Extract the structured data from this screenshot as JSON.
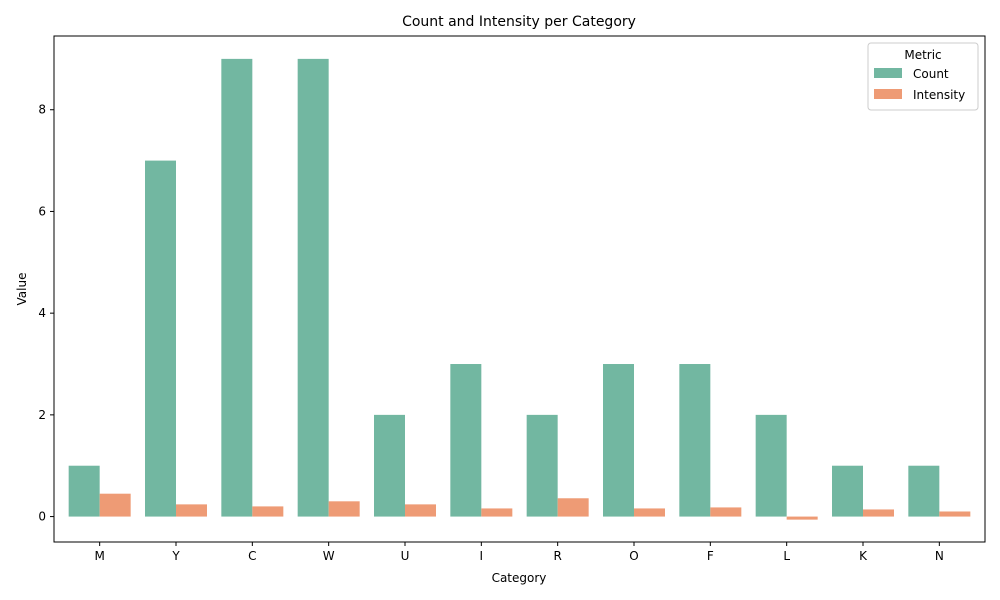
{
  "chart_data": {
    "type": "bar",
    "title": "Count and Intensity per Category",
    "xlabel": "Category",
    "ylabel": "Value",
    "categories": [
      "M",
      "Y",
      "C",
      "W",
      "U",
      "I",
      "R",
      "O",
      "F",
      "L",
      "K",
      "N"
    ],
    "series": [
      {
        "name": "Count",
        "color": "#72b7a1",
        "values": [
          1,
          7,
          9,
          9,
          2,
          3,
          2,
          3,
          3,
          2,
          1,
          1
        ]
      },
      {
        "name": "Intensity",
        "color": "#ee9b75",
        "values": [
          0.45,
          0.24,
          0.2,
          0.3,
          0.24,
          0.16,
          0.36,
          0.16,
          0.18,
          -0.06,
          0.14,
          0.1
        ]
      }
    ],
    "ylim": [
      -0.5,
      9.45
    ],
    "yticks": [
      0,
      2,
      4,
      6,
      8
    ],
    "grid": false,
    "legend": {
      "title": "Metric",
      "placement": "top-right"
    }
  }
}
